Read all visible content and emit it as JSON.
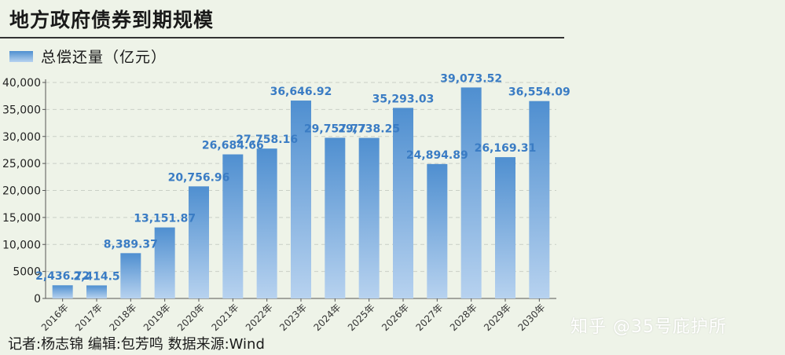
{
  "title": "地方政府债券到期规模",
  "legend": "总偿还量（亿元）",
  "footer": "记者:杨志锦  编辑:包芳鸣  数据来源:Wind",
  "watermark": "知乎 @35号庇护所",
  "colors": {
    "bar_top": "#4f8fd0",
    "bar_bottom": "#b7d2ef",
    "value_label": "#3a7cc4",
    "background": "#eef3e8"
  },
  "chart_data": {
    "type": "bar",
    "categories": [
      "2016年",
      "2017年",
      "2018年",
      "2019年",
      "2020年",
      "2021年",
      "2022年",
      "2023年",
      "2024年",
      "2025年",
      "2026年",
      "2027年",
      "2028年",
      "2029年",
      "2030年"
    ],
    "series": [
      {
        "name": "总偿还量（亿元）",
        "values": [
          2436.72,
          2414.5,
          8389.37,
          13151.87,
          20756.96,
          26684.66,
          27758.16,
          36646.92,
          29757.77,
          29738.25,
          35293.03,
          24894.89,
          39073.52,
          26169.31,
          36554.09
        ],
        "labels": [
          "2,436.72",
          "2,414.5",
          "8,389.37",
          "13,151.87",
          "20,756.96",
          "26,684.66",
          "27,758.16",
          "36,646.92",
          "29,757.77",
          "29,738.25",
          "35,293.03",
          "24,894.89",
          "39,073.52",
          "26,169.31",
          "36,554.09"
        ]
      }
    ],
    "yticks": [
      "0",
      "5000",
      "10,000",
      "15,000",
      "20,000",
      "25,000",
      "30,000",
      "35,000",
      "40,000"
    ],
    "ylim": [
      0,
      40000
    ],
    "grid": true,
    "legend_position": "top-left"
  }
}
